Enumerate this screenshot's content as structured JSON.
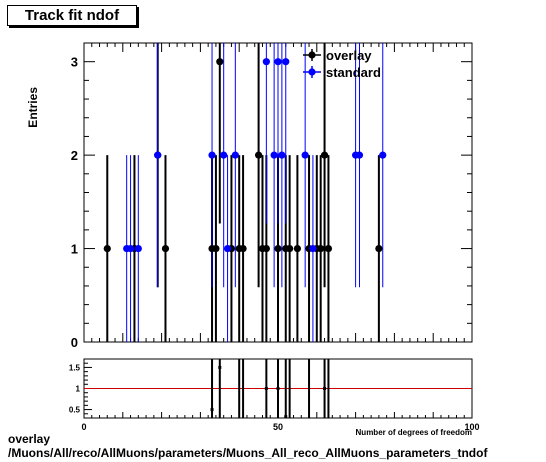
{
  "chart_data": [
    {
      "type": "scatter",
      "title": "Track fit ndof",
      "ylabel": "Entries",
      "xlim": [
        0,
        100
      ],
      "ylim": [
        0,
        3.2
      ],
      "yticks": [
        0,
        1,
        2,
        3
      ],
      "legend_position": "top-right",
      "series": [
        {
          "name": "overlay",
          "color": "#000000",
          "points": [
            [
              6,
              1
            ],
            [
              13,
              1
            ],
            [
              19,
              2
            ],
            [
              21,
              1
            ],
            [
              33,
              1
            ],
            [
              34,
              1
            ],
            [
              35,
              3
            ],
            [
              38,
              1
            ],
            [
              40,
              1
            ],
            [
              41,
              1
            ],
            [
              45,
              2
            ],
            [
              46,
              1
            ],
            [
              47,
              1
            ],
            [
              50,
              1
            ],
            [
              52,
              1
            ],
            [
              53,
              1
            ],
            [
              55,
              1
            ],
            [
              58,
              1
            ],
            [
              60,
              1
            ],
            [
              61,
              1
            ],
            [
              62,
              2
            ],
            [
              63,
              1
            ],
            [
              76,
              1
            ]
          ]
        },
        {
          "name": "standard",
          "color": "#0000ff",
          "points": [
            [
              11,
              1
            ],
            [
              12,
              1
            ],
            [
              14,
              1
            ],
            [
              19,
              2
            ],
            [
              33,
              2
            ],
            [
              36,
              2
            ],
            [
              37,
              1
            ],
            [
              39,
              2
            ],
            [
              47,
              3
            ],
            [
              49,
              2
            ],
            [
              50,
              3
            ],
            [
              51,
              2
            ],
            [
              52,
              3
            ],
            [
              57,
              2
            ],
            [
              59,
              1
            ],
            [
              70,
              2
            ],
            [
              71,
              2
            ],
            [
              77,
              2
            ]
          ]
        }
      ]
    },
    {
      "type": "scatter",
      "xlabel": "Number of degrees of freedom",
      "xlim": [
        0,
        100
      ],
      "ylim": [
        0.3,
        1.7
      ],
      "xticks": [
        0,
        50,
        100
      ],
      "yticks": [
        0.5,
        1,
        1.5
      ],
      "reference_line": {
        "y": 1,
        "color": "#cc0000"
      },
      "points": [
        [
          33,
          0.5
        ],
        [
          35,
          1.5
        ],
        [
          47,
          1
        ],
        [
          50,
          1
        ],
        [
          52,
          0.33
        ],
        [
          62,
          1
        ]
      ]
    }
  ],
  "footer": {
    "line1": "overlay",
    "line2": "/Muons/All/reco/AllMuons/parameters/Muons_All_reco_AllMuons_parameters_tndof"
  }
}
